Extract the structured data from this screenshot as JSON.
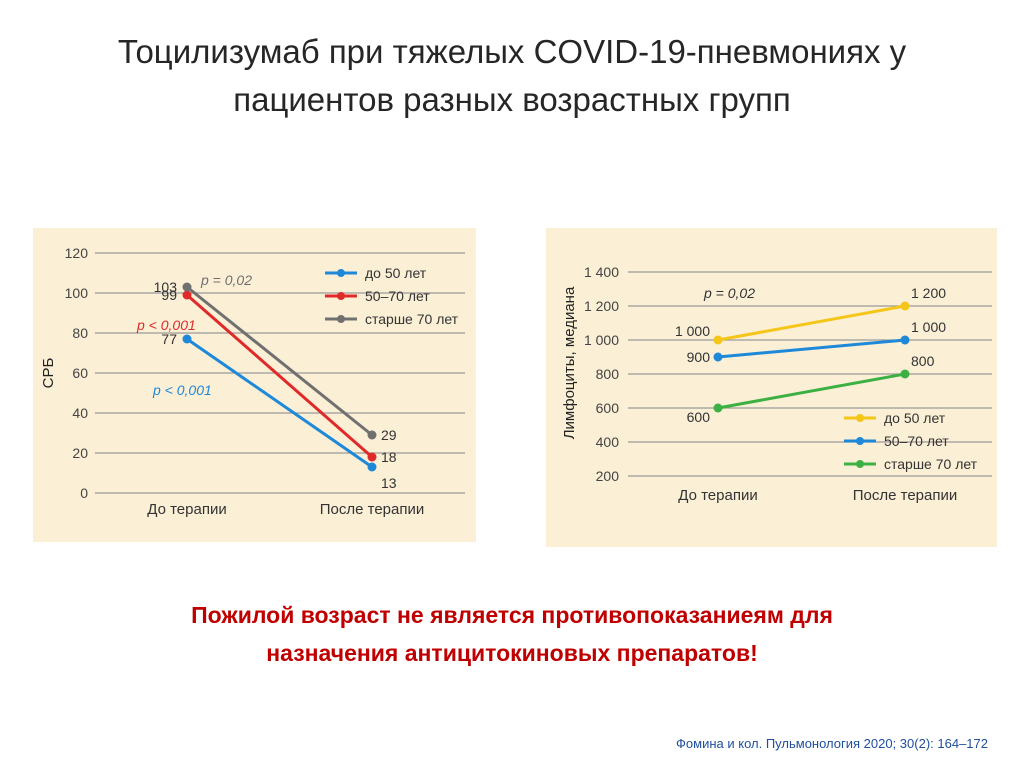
{
  "title": {
    "line1": "Тоцилизумаб при тяжелых COVID-19-пневмониях у",
    "line2": "пациентов разных возрастных групп"
  },
  "chart_data": [
    {
      "type": "line",
      "ylabel": "СРБ",
      "xlabel": "",
      "categories": [
        "До терапии",
        "После терапии"
      ],
      "ylim": [
        0,
        120
      ],
      "yticks": [
        0,
        20,
        40,
        60,
        80,
        100,
        120
      ],
      "ytick_labels": [
        "0",
        "20",
        "40",
        "60",
        "80",
        "100",
        "120"
      ],
      "grid": true,
      "legend_position": "top-right",
      "series": [
        {
          "name": "до 50 лет",
          "color": "#1e88d9",
          "values": [
            77,
            13
          ],
          "labels": [
            "77",
            "13"
          ]
        },
        {
          "name": "50–70 лет",
          "color": "#e02a2a",
          "values": [
            99,
            18
          ],
          "labels": [
            "99",
            "18"
          ]
        },
        {
          "name": "старше 70 лет",
          "color": "#707070",
          "values": [
            103,
            29
          ],
          "labels": [
            "103",
            "29"
          ]
        }
      ],
      "annotations": [
        {
          "text": "p = 0,02",
          "color": "#707070"
        },
        {
          "text": "p < 0,001",
          "color": "#e02a2a"
        },
        {
          "text": "p < 0,001",
          "color": "#1e88d9"
        }
      ]
    },
    {
      "type": "line",
      "ylabel": "Лимфоциты, медиана",
      "xlabel": "",
      "categories": [
        "До терапии",
        "После терапии"
      ],
      "ylim": [
        200,
        1400
      ],
      "yticks": [
        200,
        400,
        600,
        800,
        1000,
        1200,
        1400
      ],
      "ytick_labels": [
        "200",
        "400",
        "600",
        "800",
        "1 000",
        "1 200",
        "1 400"
      ],
      "grid": true,
      "legend_position": "bottom-right",
      "series": [
        {
          "name": "до 50 лет",
          "color": "#f5c518",
          "values": [
            1000,
            1200
          ],
          "labels": [
            "1 000",
            "1 200"
          ]
        },
        {
          "name": "50–70 лет",
          "color": "#1e88d9",
          "values": [
            900,
            1000
          ],
          "labels": [
            "900",
            "1 000"
          ]
        },
        {
          "name": "старше 70 лет",
          "color": "#3cb043",
          "values": [
            600,
            800
          ],
          "labels": [
            "600",
            "800"
          ]
        }
      ],
      "annotations": [
        {
          "text": "p = 0,02",
          "color": "#333333"
        }
      ]
    }
  ],
  "conclusion": {
    "line1": "Пожилой возраст не является противопоказаниеям для",
    "line2": "назначения антицитокиновых препаратов!"
  },
  "citation": "Фомина и кол. Пульмонология 2020; 30(2): 164–172"
}
